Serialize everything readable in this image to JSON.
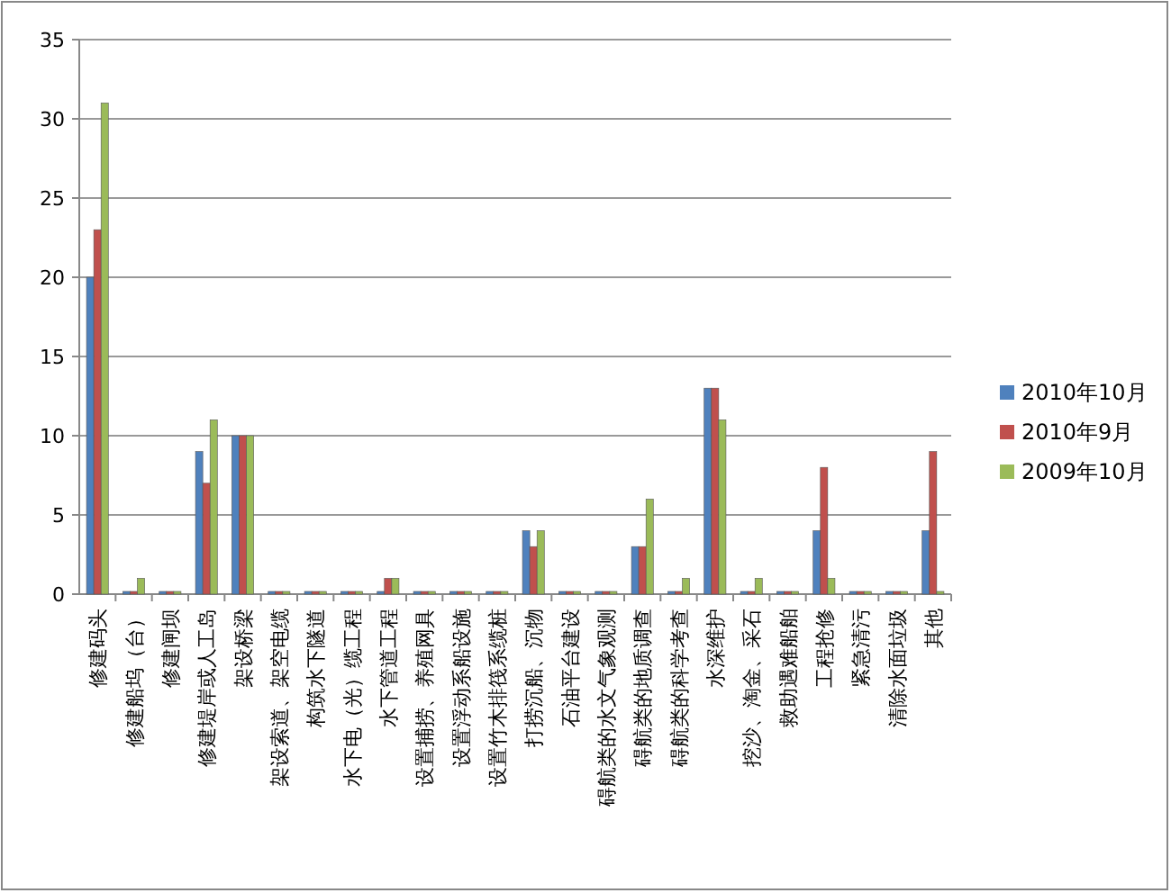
{
  "chart_data": {
    "type": "bar",
    "categories": [
      "修建码头",
      "修建船坞（台）",
      "修建闸坝",
      "修建堤岸或人工岛",
      "架设桥梁",
      "架设索道、架空电缆",
      "构筑水下隧道",
      "水下电（光）缆工程",
      "水下管道工程",
      "设置捕捞、养殖网具",
      "设置浮动系船设施",
      "设置竹木排筏系缆桩",
      "打捞沉船、沉物",
      "石油平台建设",
      "碍航类的水文气象观测",
      "碍航类的地质调查",
      "碍航类的科学考查",
      "水深维护",
      "挖沙、淘金、采石",
      "救助遇难船舶",
      "工程抢修",
      "紧急清污",
      "清除水面垃圾",
      "其他"
    ],
    "series": [
      {
        "name": "2010年10月",
        "color": "#4f81bd",
        "values": [
          20,
          0,
          0,
          9,
          10,
          0,
          0,
          0,
          0,
          0,
          0,
          0,
          4,
          0,
          0,
          3,
          0,
          13,
          0,
          0,
          4,
          0,
          0,
          4
        ]
      },
      {
        "name": "2010年9月",
        "color": "#c0504d",
        "values": [
          23,
          0,
          0,
          7,
          10,
          0,
          0,
          0,
          1,
          0,
          0,
          0,
          3,
          0,
          0,
          3,
          0,
          13,
          0,
          0,
          8,
          0,
          0,
          9
        ]
      },
      {
        "name": "2009年10月",
        "color": "#9bbb59",
        "values": [
          31,
          1,
          0,
          11,
          10,
          0,
          0,
          0,
          1,
          0,
          0,
          0,
          4,
          0,
          0,
          6,
          1,
          11,
          1,
          0,
          1,
          0,
          0,
          0
        ]
      }
    ],
    "ylim": [
      0,
      35
    ],
    "yticks": [
      0,
      5,
      10,
      15,
      20,
      25,
      30,
      35
    ],
    "grid": "y",
    "legend": "right"
  }
}
